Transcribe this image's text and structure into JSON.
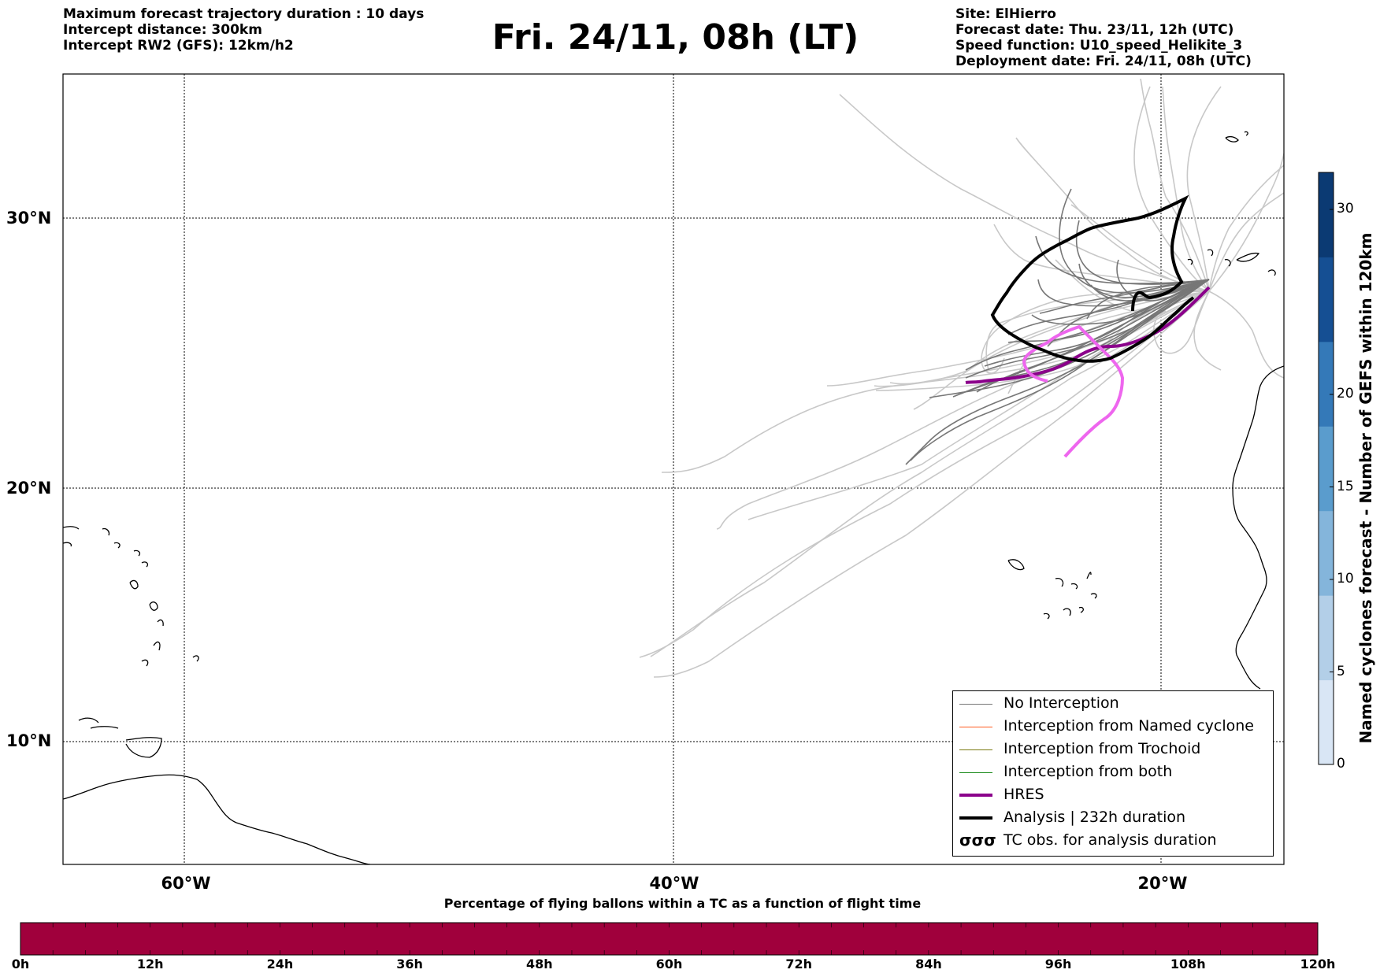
{
  "header": {
    "left": [
      "Maximum forecast trajectory duration : 10 days",
      "Intercept distance: 300km",
      "Intercept RW2 (GFS):  12km/h2"
    ],
    "right": [
      "Site: ElHierro",
      "Forecast date: Thu. 23/11, 12h (UTC)",
      "Speed function: U10_speed_Helikite_3",
      "Deployment date: Fri. 24/11, 08h (UTC)"
    ],
    "title": "Fri. 24/11, 08h (LT)"
  },
  "map": {
    "lat_labels": [
      "30°N",
      "20°N",
      "10°N"
    ],
    "lon_labels": [
      "60°W",
      "40°W",
      "20°W"
    ],
    "colors": {
      "no_interception": "#777777",
      "named_cyclone": "#ff5a1f",
      "trochoid": "#7a7a10",
      "both": "#1a8a1a",
      "hres": "#8b008b",
      "analysis": "#000000",
      "alt_track": "#ee66ee",
      "light_track": "#c8c8c8"
    }
  },
  "legend": {
    "items": [
      {
        "label": "No Interception",
        "color": "#777777",
        "style": "thin"
      },
      {
        "label": "Interception from Named cyclone",
        "color": "#ff5a1f",
        "style": "thin"
      },
      {
        "label": "Interception from Trochoid",
        "color": "#7a7a10",
        "style": "thin"
      },
      {
        "label": "Interception from both",
        "color": "#1a8a1a",
        "style": "thin"
      },
      {
        "label": "HRES",
        "color": "#8b008b",
        "style": "thick"
      },
      {
        "label": "Analysis | 232h duration",
        "color": "#000000",
        "style": "thick"
      },
      {
        "label": "TC obs. for analysis duration",
        "color": "#000000",
        "style": "symbol",
        "symbol": "σσσ"
      }
    ]
  },
  "colorbar_vertical": {
    "title": "Named cyclones forecast - Number of GEFS within 120km",
    "ticks": [
      "0",
      "5",
      "10",
      "15",
      "20",
      "30"
    ],
    "tick_values": [
      0,
      5,
      10,
      15,
      20,
      30
    ],
    "max": 32,
    "colors": [
      "#d9e6f5",
      "#b3cfe8",
      "#84b5db",
      "#5a9ccd",
      "#3479b8",
      "#154f93",
      "#0b3a73"
    ]
  },
  "colorbar_horizontal": {
    "title": "Percentage of flying ballons within a TC as a function of flight time",
    "ticks": [
      "0h",
      "12h",
      "24h",
      "36h",
      "48h",
      "60h",
      "72h",
      "84h",
      "96h",
      "108h",
      "120h"
    ],
    "fill_color": "#a0003c"
  }
}
